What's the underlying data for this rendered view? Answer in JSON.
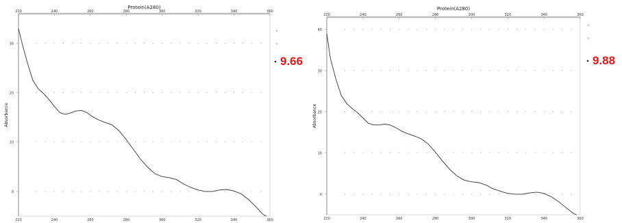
{
  "chart_data": [
    {
      "type": "line",
      "title": "Protein(A280)",
      "xlabel": "",
      "ylabel": "Absorbance",
      "xlim": [
        220,
        360
      ],
      "ylim": [
        -5,
        36
      ],
      "xticks": [
        220,
        240,
        260,
        280,
        300,
        320,
        340,
        360
      ],
      "yticks": [
        0,
        10,
        20,
        30
      ],
      "legend": [
        "",
        ""
      ],
      "annotation": "9.66",
      "annotation_color": "#ee1111",
      "series": [
        {
          "x": [
            220,
            222,
            225,
            228,
            231,
            234,
            237,
            240,
            243,
            246,
            249,
            252,
            255,
            258,
            261,
            264,
            268,
            272,
            276,
            280,
            284,
            288,
            292,
            296,
            300,
            304,
            308,
            312,
            316,
            320,
            324,
            328,
            332,
            336,
            340,
            344,
            348,
            352,
            356,
            358
          ],
          "y": [
            33,
            30,
            26,
            22.5,
            20.8,
            19.8,
            18.6,
            17.2,
            16.0,
            15.6,
            15.9,
            16.3,
            16.4,
            16.0,
            15.2,
            14.6,
            14.0,
            13.5,
            12.3,
            10.5,
            8.5,
            6.5,
            4.9,
            3.6,
            3.0,
            2.8,
            2.4,
            1.5,
            0.8,
            0.3,
            0.0,
            0.0,
            0.3,
            0.4,
            0.1,
            -0.5,
            -1.6,
            -3.0,
            -4.6,
            -5.0
          ]
        }
      ]
    },
    {
      "type": "line",
      "title": "Protein(A280)",
      "xlabel": "",
      "ylabel": "Absorbance",
      "xlim": [
        220,
        360
      ],
      "ylim": [
        -5,
        43
      ],
      "xticks": [
        220,
        240,
        260,
        280,
        300,
        320,
        340,
        360
      ],
      "yticks": [
        0,
        10,
        20,
        30,
        40
      ],
      "legend": [
        "",
        ""
      ],
      "annotation": "9.88",
      "annotation_color": "#ee1111",
      "series": [
        {
          "x": [
            220,
            222,
            225,
            228,
            231,
            234,
            237,
            240,
            243,
            246,
            249,
            252,
            255,
            258,
            261,
            264,
            268,
            272,
            276,
            280,
            284,
            288,
            292,
            296,
            300,
            304,
            308,
            312,
            316,
            320,
            324,
            328,
            332,
            336,
            340,
            344,
            348,
            352,
            356,
            358
          ],
          "y": [
            39,
            33,
            28,
            24,
            22,
            20.8,
            19.8,
            18.5,
            17.2,
            16.8,
            16.8,
            17.0,
            16.8,
            16.2,
            15.4,
            14.8,
            14.2,
            13.5,
            12.2,
            10.2,
            8.0,
            6.0,
            4.4,
            3.4,
            3.0,
            2.8,
            2.2,
            1.3,
            0.7,
            0.2,
            0.0,
            0.0,
            0.3,
            0.5,
            0.2,
            -0.6,
            -1.8,
            -3.2,
            -4.6,
            -5.0
          ]
        }
      ]
    }
  ]
}
